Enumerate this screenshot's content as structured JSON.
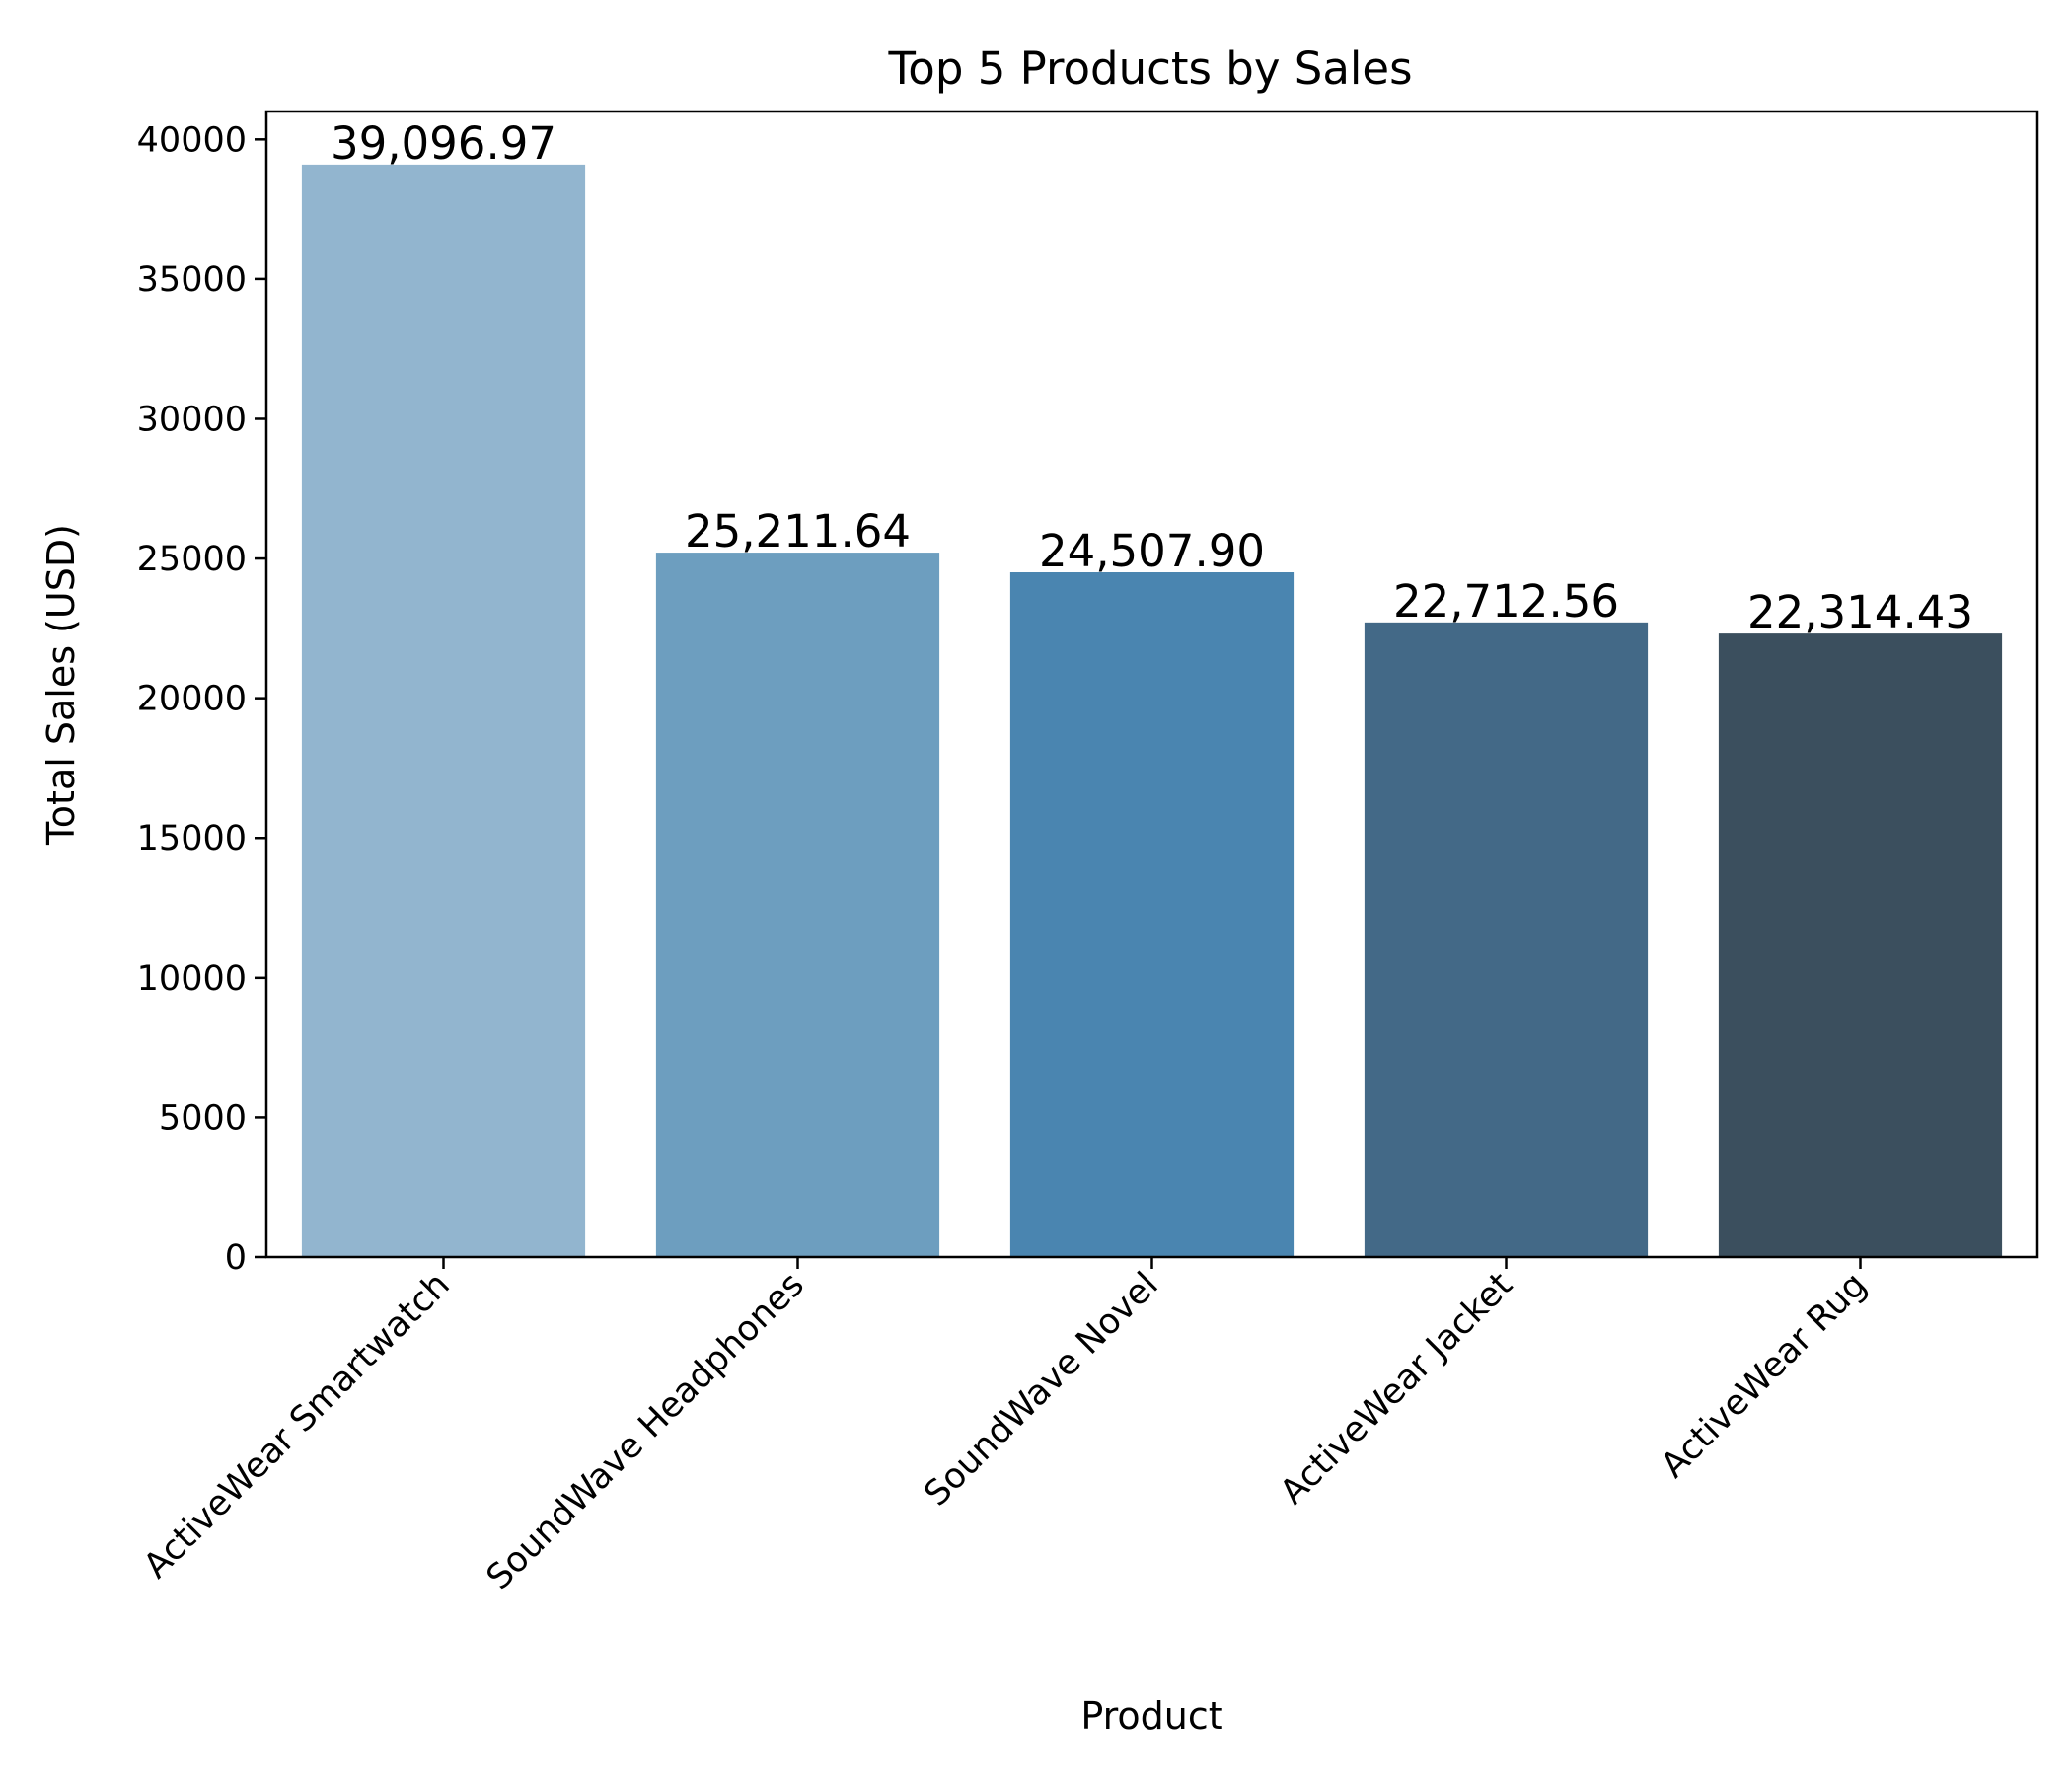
{
  "chart_data": {
    "type": "bar",
    "title": "Top 5 Products by Sales",
    "xlabel": "Product",
    "ylabel": "Total Sales (USD)",
    "categories": [
      "ActiveWear Smartwatch",
      "SoundWave Headphones",
      "SoundWave Novel",
      "ActiveWear Jacket",
      "ActiveWear Rug"
    ],
    "values": [
      39096.97,
      25211.64,
      24507.9,
      22712.56,
      22314.43
    ],
    "value_labels": [
      "39,096.97",
      "25,211.64",
      "24,507.90",
      "22,712.56",
      "22,314.43"
    ],
    "colors": [
      "#92b5cf",
      "#6d9ebf",
      "#4a85b0",
      "#436987",
      "#3b4f5e"
    ],
    "ylim": [
      0,
      41000
    ],
    "yticks": [
      0,
      5000,
      10000,
      15000,
      20000,
      25000,
      30000,
      35000,
      40000
    ],
    "ytick_labels": [
      "0",
      "5000",
      "10000",
      "15000",
      "20000",
      "25000",
      "30000",
      "35000",
      "40000"
    ],
    "grid": false,
    "legend": "none"
  }
}
